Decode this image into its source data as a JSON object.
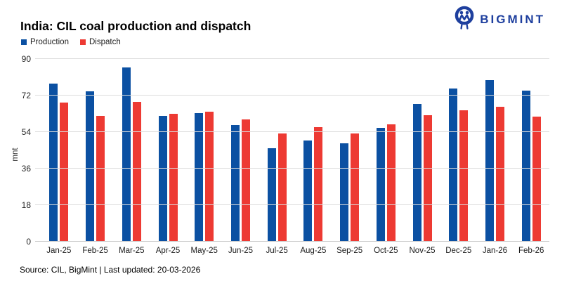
{
  "header": {
    "title": "India: CIL coal production and dispatch",
    "brand": "BIGMINT"
  },
  "legend": [
    {
      "label": "Production",
      "color": "#0B50A2"
    },
    {
      "label": "Dispatch",
      "color": "#ED3A33"
    }
  ],
  "footer": {
    "text": "Source: CIL, BigMint | Last updated: 20-03-2026"
  },
  "chart_data": {
    "type": "bar",
    "title": "India: CIL coal production and dispatch",
    "xlabel": "",
    "ylabel": "mnt",
    "ylim": [
      0,
      90
    ],
    "yticks": [
      0,
      18,
      36,
      54,
      72,
      90
    ],
    "grid": true,
    "legend_position": "top-left",
    "categories": [
      "Jan-25",
      "Feb-25",
      "Mar-25",
      "Apr-25",
      "May-25",
      "Jun-25",
      "Jul-25",
      "Aug-25",
      "Sep-25",
      "Oct-25",
      "Nov-25",
      "Dec-25",
      "Jan-26",
      "Feb-26"
    ],
    "series": [
      {
        "name": "Production",
        "color": "#0B50A2",
        "values": [
          77.8,
          74.2,
          85.9,
          62.0,
          63.4,
          57.4,
          45.9,
          50.0,
          48.4,
          56.0,
          67.8,
          75.4,
          79.7,
          74.6
        ]
      },
      {
        "name": "Dispatch",
        "color": "#ED3A33",
        "values": [
          68.6,
          62.0,
          69.0,
          62.9,
          64.0,
          60.2,
          53.3,
          56.5,
          53.3,
          57.8,
          62.2,
          64.9,
          66.3,
          61.6
        ]
      }
    ]
  }
}
